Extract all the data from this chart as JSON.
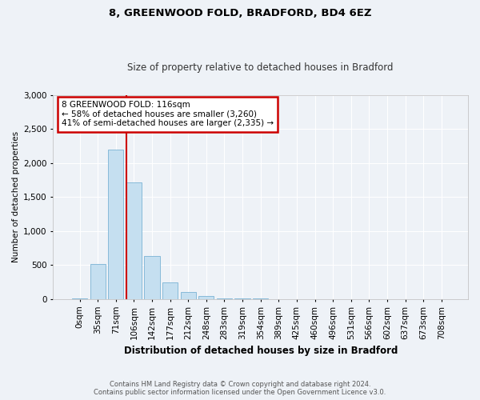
{
  "title1": "8, GREENWOOD FOLD, BRADFORD, BD4 6EZ",
  "title2": "Size of property relative to detached houses in Bradford",
  "xlabel": "Distribution of detached houses by size in Bradford",
  "ylabel": "Number of detached properties",
  "bar_labels": [
    "0sqm",
    "35sqm",
    "71sqm",
    "106sqm",
    "142sqm",
    "177sqm",
    "212sqm",
    "248sqm",
    "283sqm",
    "319sqm",
    "354sqm",
    "389sqm",
    "425sqm",
    "460sqm",
    "496sqm",
    "531sqm",
    "566sqm",
    "602sqm",
    "637sqm",
    "673sqm",
    "708sqm"
  ],
  "bar_values": [
    5,
    520,
    2190,
    1720,
    630,
    240,
    100,
    40,
    15,
    5,
    5,
    2,
    1,
    1,
    0,
    0,
    0,
    0,
    0,
    0,
    0
  ],
  "bar_color": "#c5dff0",
  "bar_edge_color": "#7ab3d4",
  "background_color": "#eef2f7",
  "ylim": [
    0,
    3000
  ],
  "yticks": [
    0,
    500,
    1000,
    1500,
    2000,
    2500,
    3000
  ],
  "annotation_text": "8 GREENWOOD FOLD: 116sqm\n← 58% of detached houses are smaller (3,260)\n41% of semi-detached houses are larger (2,335) →",
  "annotation_box_color": "#ffffff",
  "annotation_border_color": "#cc0000",
  "footer": "Contains HM Land Registry data © Crown copyright and database right 2024.\nContains public sector information licensed under the Open Government Licence v3.0."
}
